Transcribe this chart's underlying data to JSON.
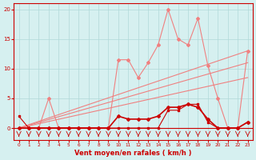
{
  "x": [
    0,
    1,
    2,
    3,
    4,
    5,
    6,
    7,
    8,
    9,
    10,
    11,
    12,
    13,
    14,
    15,
    16,
    17,
    18,
    19,
    20,
    21,
    22,
    23
  ],
  "rafales": [
    0,
    0,
    0,
    5,
    0,
    0,
    0,
    0,
    0,
    0,
    11.5,
    11.5,
    8.5,
    11,
    14,
    20,
    15,
    14,
    18.5,
    10.5,
    5,
    0,
    0,
    13
  ],
  "moyen": [
    2,
    0,
    0,
    0,
    0,
    0,
    0,
    0,
    0,
    0,
    0,
    0,
    0,
    0,
    0,
    3,
    3,
    4,
    4,
    1,
    0,
    0,
    0,
    1
  ],
  "freq": [
    0,
    0,
    0,
    0,
    0,
    0,
    0,
    0,
    0,
    0,
    2,
    1.5,
    1.5,
    1.5,
    2,
    3.5,
    3.5,
    4,
    3.5,
    1.5,
    0,
    0,
    0,
    1
  ],
  "linear1_start": 0,
  "linear1_end": 13,
  "linear2_start": 0,
  "linear2_end": 8.5,
  "linear3_start": 0,
  "linear3_end": 11,
  "bg_color": "#d6f0f0",
  "grid_color": "#b0d8d8",
  "line_color_dark": "#cc0000",
  "line_color_light": "#f08080",
  "xlabel": "Vent moyen/en rafales ( km/h )",
  "ylabel": "",
  "yticks": [
    0,
    5,
    10,
    15,
    20
  ],
  "xticks": [
    0,
    1,
    2,
    3,
    4,
    5,
    6,
    7,
    8,
    9,
    10,
    11,
    12,
    13,
    14,
    15,
    16,
    17,
    18,
    19,
    20,
    21,
    22,
    23
  ],
  "ylim": [
    -2,
    21
  ],
  "xlim": [
    -0.5,
    23.5
  ]
}
